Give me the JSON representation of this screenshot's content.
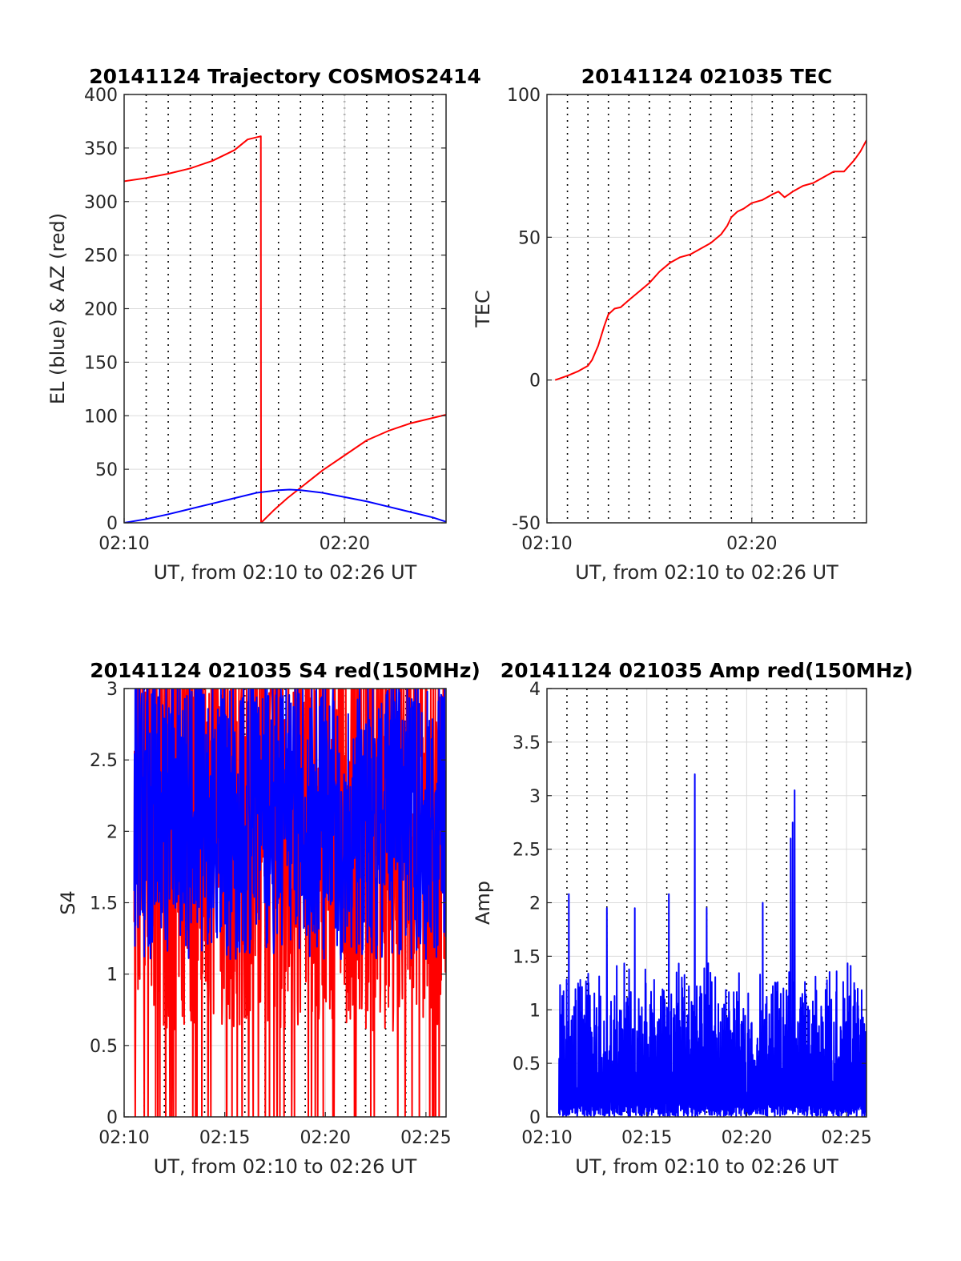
{
  "chart_data": [
    {
      "type": "line",
      "title": "20141124 Trajectory COSMOS2414",
      "xlabel": "UT, from 02:10 to 02:26 UT",
      "ylabel": "EL (blue) & AZ (red)",
      "xlim": [
        0,
        14.6
      ],
      "ylim": [
        0,
        400
      ],
      "xticks": [
        0,
        10
      ],
      "xtick_labels": [
        "02:10",
        "02:20"
      ],
      "yticks": [
        0,
        50,
        100,
        150,
        200,
        250,
        300,
        350,
        400
      ],
      "ytick_labels": [
        "0",
        "50",
        "100",
        "150",
        "200",
        "250",
        "300",
        "350",
        "400"
      ],
      "minor_vgrid": [
        1,
        2,
        3,
        4,
        5,
        6,
        7,
        8,
        9,
        10,
        11,
        12,
        13,
        14
      ],
      "grid": true,
      "series": [
        {
          "color": "#ff0000",
          "x": [
            0,
            1,
            2,
            3,
            4,
            5,
            5.6,
            6.2,
            6.21,
            6.8,
            7.4,
            8.2,
            9,
            10,
            11,
            12,
            13,
            14.6
          ],
          "y": [
            319,
            322,
            326,
            331,
            338,
            348,
            358,
            361,
            0,
            12,
            23,
            36,
            49,
            63,
            77,
            86,
            93,
            101
          ]
        },
        {
          "color": "#0000ff",
          "x": [
            0,
            1,
            2,
            3,
            4,
            5,
            6,
            7,
            7.5,
            8,
            9,
            10,
            11,
            12,
            13,
            14,
            14.6
          ],
          "y": [
            0,
            3.5,
            8,
            13,
            18,
            23,
            28,
            30.5,
            31,
            30.5,
            28,
            24,
            20,
            15,
            10,
            5,
            1
          ]
        }
      ]
    },
    {
      "type": "line",
      "title": "20141124 021035 TEC",
      "xlabel": "UT, from 02:10 to 02:26 UT",
      "ylabel": "TEC",
      "xlim": [
        0,
        15.6
      ],
      "ylim": [
        -50,
        100
      ],
      "xticks": [
        0,
        10
      ],
      "xtick_labels": [
        "02:10",
        "02:20"
      ],
      "yticks": [
        -50,
        0,
        50,
        100
      ],
      "ytick_labels": [
        "-50",
        "0",
        "50",
        "100"
      ],
      "minor_vgrid": [
        1,
        2,
        3,
        4,
        5,
        6,
        7,
        8,
        9,
        10,
        11,
        12,
        13,
        14,
        15
      ],
      "grid": true,
      "series": [
        {
          "color": "#ff0000",
          "x": [
            0.4,
            1.0,
            1.5,
            2.0,
            2.2,
            2.5,
            2.8,
            3.0,
            3.3,
            3.6,
            4.0,
            4.5,
            5.0,
            5.5,
            6.0,
            6.5,
            7.0,
            7.5,
            8.0,
            8.5,
            8.8,
            9.0,
            9.3,
            9.6,
            10.0,
            10.5,
            11.0,
            11.3,
            11.6,
            12.0,
            12.5,
            13.0,
            13.5,
            14.0,
            14.5,
            15.0,
            15.3,
            15.6
          ],
          "y": [
            0,
            1.5,
            3,
            5,
            7,
            12,
            19,
            23,
            25,
            25.5,
            28,
            31,
            34,
            38,
            41,
            43,
            44,
            46,
            48,
            51,
            54,
            57,
            59,
            60,
            62,
            63,
            65,
            66,
            64,
            66,
            68,
            69,
            71,
            73,
            73,
            77,
            80,
            84
          ]
        }
      ]
    },
    {
      "type": "line",
      "title": "20141124 021035 S4 red(150MHz)",
      "xlabel": "UT, from 02:10 to 02:26 UT",
      "ylabel": "S4",
      "xlim": [
        0,
        16
      ],
      "ylim": [
        0,
        3
      ],
      "xticks": [
        0,
        5,
        10,
        15
      ],
      "xtick_labels": [
        "02:10",
        "02:15",
        "02:20",
        "02:25"
      ],
      "yticks": [
        0,
        0.5,
        1,
        1.5,
        2,
        2.5,
        3
      ],
      "ytick_labels": [
        "0",
        "0.5",
        "1",
        "1.5",
        "2",
        "2.5",
        "3"
      ],
      "minor_vgrid": [
        1,
        2,
        3,
        4,
        6,
        7,
        8,
        9,
        11,
        12,
        13,
        14
      ],
      "grid": true,
      "series": [
        {
          "color": "#ff0000",
          "noise": {
            "x_start": 0.5,
            "x_end": 16,
            "n": 900,
            "seed": 7,
            "base": 2.2,
            "spread": 1.6,
            "drop_prob": 0.06
          }
        },
        {
          "color": "#0000ff",
          "noise": {
            "x_start": 0.5,
            "x_end": 16,
            "n": 900,
            "seed": 13,
            "base": 2.1,
            "spread": 1.0,
            "drop_prob": 0
          }
        }
      ]
    },
    {
      "type": "line",
      "title": "20141124 021035 Amp red(150MHz)",
      "xlabel": "UT, from 02:10 to 02:26 UT",
      "ylabel": "Amp",
      "xlim": [
        0,
        16
      ],
      "ylim": [
        0,
        4
      ],
      "xticks": [
        0,
        5,
        10,
        15
      ],
      "xtick_labels": [
        "02:10",
        "02:15",
        "02:20",
        "02:25"
      ],
      "yticks": [
        0,
        0.5,
        1,
        1.5,
        2,
        2.5,
        3,
        3.5,
        4
      ],
      "ytick_labels": [
        "0",
        "0.5",
        "1",
        "1.5",
        "2",
        "2.5",
        "3",
        "3.5",
        "4"
      ],
      "minor_vgrid": [
        1,
        2,
        3,
        4,
        6,
        7,
        8,
        9,
        11,
        12,
        13,
        14
      ],
      "grid": true,
      "series": [
        {
          "color": "#0000ff",
          "noise": {
            "x_start": 0.6,
            "x_end": 16,
            "n": 1400,
            "seed": 21,
            "peak": 1.5,
            "spikes": [
              [
                7.4,
                3.2
              ],
              [
                12.4,
                3.05
              ],
              [
                12.3,
                2.75
              ],
              [
                12.2,
                2.6
              ],
              [
                1.1,
                2.08
              ],
              [
                6.1,
                2.08
              ],
              [
                3.0,
                1.95
              ],
              [
                4.4,
                1.95
              ],
              [
                10.8,
                2.0
              ],
              [
                8.0,
                1.95
              ]
            ]
          }
        }
      ]
    }
  ]
}
